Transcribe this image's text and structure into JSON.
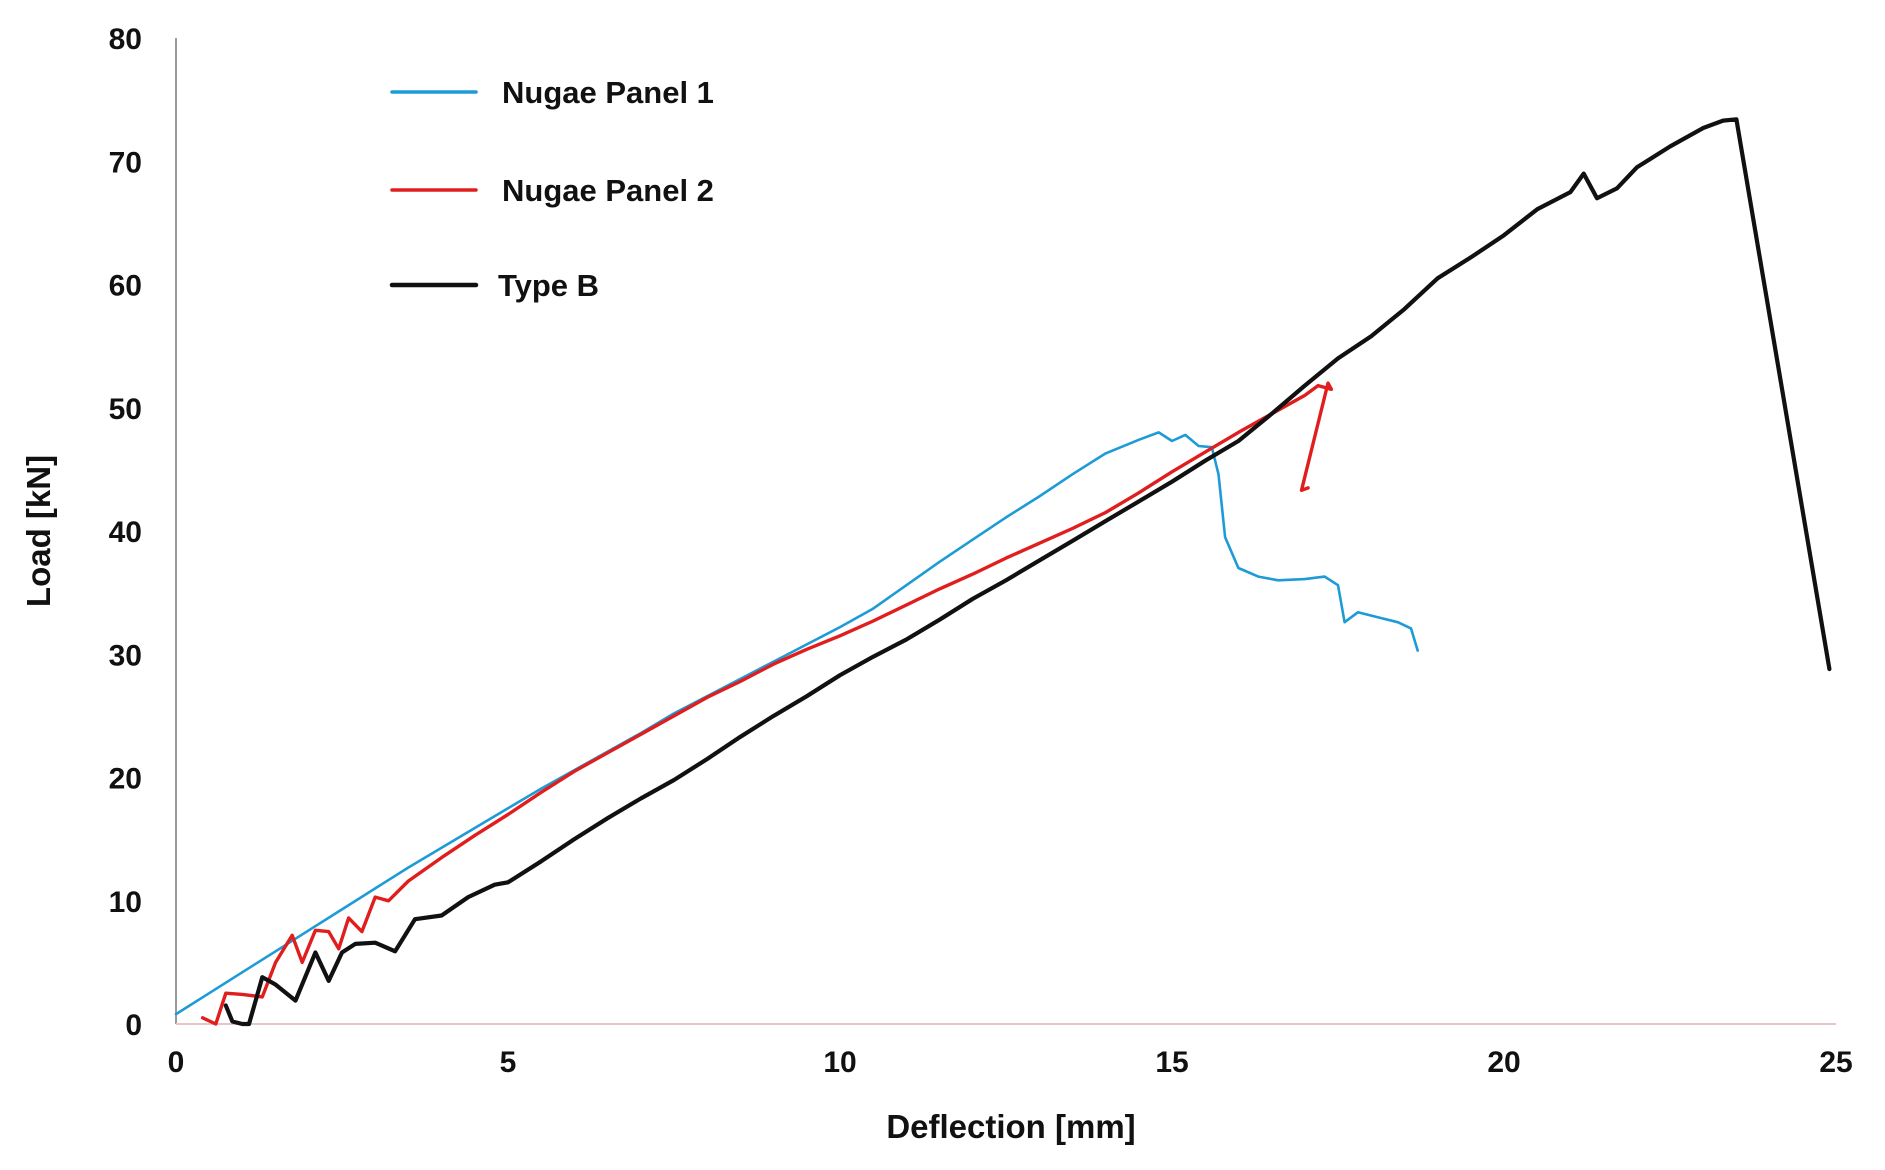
{
  "chart_data": {
    "type": "line",
    "title": "",
    "xlabel": "Deflection [mm]",
    "ylabel": "Load [kN]",
    "xlim": [
      0,
      25
    ],
    "ylim": [
      0,
      80
    ],
    "x_ticks": [
      0,
      5,
      10,
      15,
      20,
      25
    ],
    "y_ticks": [
      0,
      10,
      20,
      30,
      40,
      50,
      60,
      70,
      80
    ],
    "x_tick_labels": [
      "0",
      "5",
      "10",
      "15",
      "20",
      "25"
    ],
    "y_tick_labels": [
      "0",
      "10",
      "20",
      "30",
      "40",
      "50",
      "60",
      "70",
      "80"
    ],
    "grid": false,
    "legend_position": "top-left",
    "series": [
      {
        "name": "Nugae Panel 1",
        "color": "#1E9BD7",
        "x": [
          0,
          0.5,
          1,
          1.5,
          2,
          2.5,
          3,
          3.5,
          4,
          4.5,
          5,
          5.5,
          6,
          6.5,
          7,
          7.5,
          8,
          8.5,
          9,
          9.5,
          10,
          10.5,
          11,
          11.5,
          12,
          12.5,
          13,
          13.5,
          14,
          14.5,
          14.8,
          15,
          15.2,
          15.4,
          15.6,
          15.7,
          15.8,
          16,
          16.3,
          16.6,
          17,
          17.3,
          17.5,
          17.6,
          17.8,
          18.1,
          18.4,
          18.6,
          18.7
        ],
        "y": [
          0.8,
          2.5,
          4.2,
          5.9,
          7.6,
          9.3,
          11,
          12.7,
          14.3,
          15.9,
          17.5,
          19.1,
          20.6,
          22.1,
          23.6,
          25.2,
          26.6,
          28,
          29.4,
          30.8,
          32.2,
          33.7,
          35.6,
          37.5,
          39.3,
          41.1,
          42.8,
          44.6,
          46.3,
          47.4,
          48,
          47.3,
          47.8,
          46.9,
          46.8,
          44.6,
          39.5,
          37,
          36.3,
          36,
          36.1,
          36.3,
          35.6,
          32.6,
          33.4,
          33,
          32.6,
          32.1,
          30.3
        ]
      },
      {
        "name": "Nugae Panel 2",
        "color": "#E01E1E",
        "x": [
          0.4,
          0.6,
          0.75,
          1,
          1.3,
          1.5,
          1.75,
          1.9,
          2.1,
          2.3,
          2.45,
          2.6,
          2.8,
          3,
          3.2,
          3.5,
          4,
          4.5,
          5,
          5.5,
          6,
          6.5,
          7,
          7.5,
          8,
          8.5,
          9,
          9.5,
          10,
          10.5,
          11,
          11.5,
          12,
          12.5,
          13,
          13.5,
          14,
          14.5,
          15,
          15.5,
          16,
          16.5,
          17,
          17.2,
          17.4,
          17.35,
          16.95,
          17.05
        ],
        "y": [
          0.5,
          0,
          2.5,
          2.4,
          2.2,
          5,
          7.2,
          5,
          7.6,
          7.5,
          6.1,
          8.6,
          7.5,
          10.3,
          10,
          11.6,
          13.5,
          15.3,
          17,
          18.8,
          20.5,
          22,
          23.5,
          25,
          26.5,
          27.8,
          29.2,
          30.4,
          31.5,
          32.7,
          34,
          35.3,
          36.5,
          37.8,
          39,
          40.2,
          41.5,
          43.1,
          44.8,
          46.4,
          48,
          49.5,
          51,
          51.8,
          51.5,
          52,
          43.3,
          43.5
        ]
      },
      {
        "name": "Type B",
        "color": "#111111",
        "x": [
          0.75,
          0.85,
          1,
          1.1,
          1.3,
          1.5,
          1.8,
          2.1,
          2.3,
          2.5,
          2.7,
          3,
          3.3,
          3.6,
          4,
          4.4,
          4.8,
          5,
          5.5,
          6,
          6.5,
          7,
          7.5,
          8,
          8.5,
          9,
          9.5,
          10,
          10.5,
          11,
          11.5,
          12,
          12.5,
          13,
          13.5,
          14,
          14.5,
          15,
          15.5,
          16,
          16.5,
          17,
          17.5,
          18,
          18.5,
          19,
          19.5,
          20,
          20.5,
          21,
          21.2,
          21.4,
          21.7,
          22,
          22.5,
          23,
          23.3,
          23.5,
          24.9
        ],
        "y": [
          1.5,
          0.2,
          0,
          0,
          3.8,
          3.2,
          1.9,
          5.8,
          3.5,
          5.8,
          6.5,
          6.6,
          5.9,
          8.5,
          8.8,
          10.3,
          11.3,
          11.5,
          13.2,
          15,
          16.7,
          18.3,
          19.8,
          21.5,
          23.3,
          25,
          26.6,
          28.3,
          29.8,
          31.2,
          32.8,
          34.5,
          36,
          37.6,
          39.2,
          40.8,
          42.4,
          44,
          45.7,
          47.3,
          49.5,
          51.8,
          54,
          55.8,
          58,
          60.5,
          62.2,
          64,
          66.1,
          67.5,
          69,
          67,
          67.8,
          69.5,
          71.2,
          72.7,
          73.3,
          73.4,
          28.8
        ]
      }
    ]
  }
}
